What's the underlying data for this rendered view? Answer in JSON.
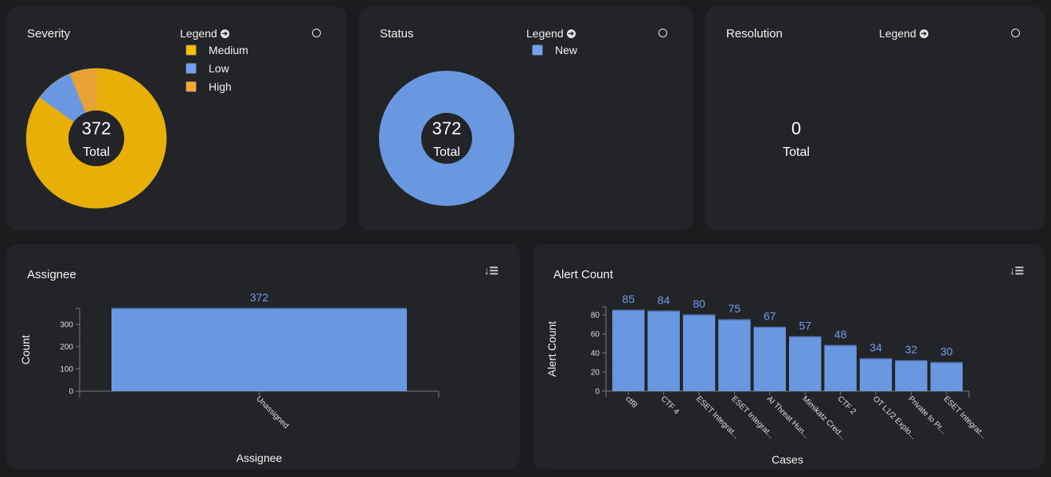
{
  "severity": {
    "title": "Severity",
    "legend_label": "Legend",
    "total": "372",
    "total_label": "Total",
    "legend": [
      {
        "label": "Medium",
        "color": "#f5bd00"
      },
      {
        "label": "Low",
        "color": "#6fa3f2"
      },
      {
        "label": "High",
        "color": "#f5a634"
      }
    ]
  },
  "status": {
    "title": "Status",
    "legend_label": "Legend",
    "total": "372",
    "total_label": "Total",
    "legend": [
      {
        "label": "New",
        "color": "#6fa3f2"
      }
    ]
  },
  "resolution": {
    "title": "Resolution",
    "legend_label": "Legend",
    "total": "0",
    "total_label": "Total"
  },
  "assignee": {
    "title": "Assignee"
  },
  "alert": {
    "title": "Alert Count"
  },
  "chart_data": [
    {
      "type": "pie",
      "name": "Severity",
      "categories": [
        "Medium",
        "Low",
        "High"
      ],
      "values": [
        316,
        33,
        23
      ],
      "colors": [
        "#e8b007",
        "#6a98e0",
        "#e8a135"
      ],
      "donut": true
    },
    {
      "type": "pie",
      "name": "Status",
      "categories": [
        "New"
      ],
      "values": [
        372
      ],
      "colors": [
        "#6a98e0"
      ],
      "donut": true
    },
    {
      "type": "bar",
      "title": "",
      "xlabel": "Assignee",
      "ylabel": "Count",
      "categories": [
        "Unassigned"
      ],
      "values": [
        372
      ],
      "ylim": [
        0,
        372
      ],
      "yticks": [
        0,
        100,
        200,
        300
      ],
      "color": "#6a98e0"
    },
    {
      "type": "bar",
      "title": "",
      "xlabel": "Cases",
      "ylabel": "Alert Count",
      "categories": [
        "ctf8",
        "CTF 4",
        "ESET Integrat...",
        "ESET Integrat...",
        "AI Threat Hun...",
        "Mimikatz Cred...",
        "CTF 2",
        "OT L1/2 Explo...",
        "Private to Pr...",
        "ESET Integrat..."
      ],
      "values": [
        85,
        84,
        80,
        75,
        67,
        57,
        48,
        34,
        32,
        30
      ],
      "ylim": [
        0,
        85
      ],
      "yticks": [
        0,
        20,
        40,
        60,
        80
      ],
      "color": "#6a98e0"
    }
  ]
}
